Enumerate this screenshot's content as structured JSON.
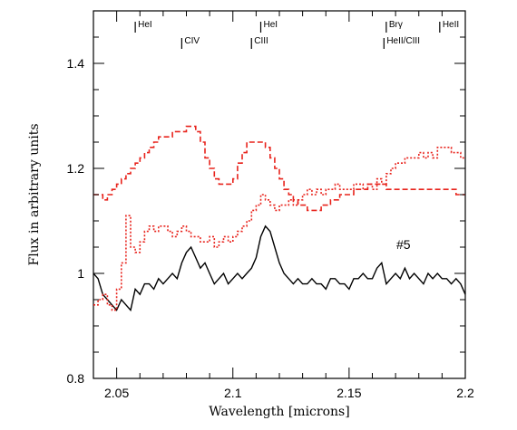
{
  "chart_data": {
    "type": "line",
    "xlabel": "Wavelength [microns]",
    "ylabel": "Flux in arbitrary units",
    "xlim": [
      2.04,
      2.2
    ],
    "ylim": [
      0.8,
      1.5
    ],
    "x_ticks": [
      2.05,
      2.1,
      2.15,
      2.2
    ],
    "x_tick_labels": [
      "2.05",
      "2.1",
      "2.15",
      "2.2"
    ],
    "y_ticks": [
      0.8,
      1.0,
      1.2,
      1.4
    ],
    "y_tick_labels": [
      "0.8",
      "1",
      "1.2",
      "1.4"
    ],
    "grid": false,
    "annotation": "#5",
    "line_markers": [
      {
        "label": "HeI",
        "x": 2.058,
        "tier": "upper"
      },
      {
        "label": "CIV",
        "x": 2.078,
        "tier": "lower"
      },
      {
        "label": "HeI",
        "x": 2.112,
        "tier": "upper"
      },
      {
        "label": "CIII",
        "x": 2.108,
        "tier": "lower"
      },
      {
        "label": "Brγ",
        "x": 2.166,
        "tier": "upper"
      },
      {
        "label": "HeII/CIII",
        "x": 2.165,
        "tier": "lower"
      },
      {
        "label": "HeII",
        "x": 2.189,
        "tier": "upper"
      }
    ],
    "series": [
      {
        "color": "#000000",
        "style": "solid",
        "step": false,
        "x": [
          2.04,
          2.042,
          2.044,
          2.046,
          2.048,
          2.05,
          2.052,
          2.054,
          2.056,
          2.058,
          2.06,
          2.062,
          2.064,
          2.066,
          2.068,
          2.07,
          2.072,
          2.074,
          2.076,
          2.078,
          2.08,
          2.082,
          2.084,
          2.086,
          2.088,
          2.09,
          2.092,
          2.094,
          2.096,
          2.098,
          2.1,
          2.102,
          2.104,
          2.106,
          2.108,
          2.11,
          2.112,
          2.114,
          2.116,
          2.118,
          2.12,
          2.122,
          2.124,
          2.126,
          2.128,
          2.13,
          2.132,
          2.134,
          2.136,
          2.138,
          2.14,
          2.142,
          2.144,
          2.146,
          2.148,
          2.15,
          2.152,
          2.154,
          2.156,
          2.158,
          2.16,
          2.162,
          2.164,
          2.166,
          2.168,
          2.17,
          2.172,
          2.174,
          2.176,
          2.178,
          2.18,
          2.182,
          2.184,
          2.186,
          2.188,
          2.19,
          2.192,
          2.194,
          2.196,
          2.198,
          2.2
        ],
        "y": [
          1.0,
          0.99,
          0.96,
          0.95,
          0.94,
          0.93,
          0.95,
          0.94,
          0.93,
          0.97,
          0.96,
          0.98,
          0.98,
          0.97,
          0.99,
          0.98,
          0.99,
          1.0,
          0.99,
          1.02,
          1.04,
          1.05,
          1.03,
          1.01,
          1.02,
          1.0,
          0.98,
          0.99,
          1.0,
          0.98,
          0.99,
          1.0,
          0.99,
          1.0,
          1.01,
          1.03,
          1.07,
          1.09,
          1.08,
          1.05,
          1.02,
          1.0,
          0.99,
          0.98,
          0.99,
          0.98,
          0.98,
          0.99,
          0.98,
          0.98,
          0.97,
          0.99,
          0.99,
          0.98,
          0.98,
          0.97,
          0.99,
          0.99,
          1.0,
          0.99,
          0.99,
          1.01,
          1.02,
          0.98,
          0.99,
          1.0,
          0.99,
          1.01,
          0.99,
          1.0,
          0.99,
          0.98,
          1.0,
          0.99,
          1.0,
          0.99,
          0.99,
          0.98,
          0.99,
          0.98,
          0.96
        ]
      },
      {
        "color": "#e8231c",
        "style": "dotted",
        "step": true,
        "x": [
          2.04,
          2.042,
          2.044,
          2.046,
          2.048,
          2.05,
          2.052,
          2.054,
          2.056,
          2.058,
          2.06,
          2.062,
          2.064,
          2.066,
          2.068,
          2.07,
          2.072,
          2.074,
          2.076,
          2.078,
          2.08,
          2.082,
          2.084,
          2.086,
          2.088,
          2.09,
          2.092,
          2.094,
          2.096,
          2.098,
          2.1,
          2.102,
          2.104,
          2.106,
          2.108,
          2.11,
          2.112,
          2.114,
          2.116,
          2.118,
          2.12,
          2.122,
          2.124,
          2.126,
          2.128,
          2.13,
          2.132,
          2.134,
          2.136,
          2.138,
          2.14,
          2.142,
          2.144,
          2.146,
          2.148,
          2.15,
          2.152,
          2.154,
          2.156,
          2.158,
          2.16,
          2.162,
          2.164,
          2.166,
          2.168,
          2.17,
          2.172,
          2.174,
          2.176,
          2.178,
          2.18,
          2.182,
          2.184,
          2.186,
          2.188,
          2.19,
          2.192,
          2.194,
          2.196,
          2.198,
          2.2
        ],
        "y": [
          0.94,
          0.95,
          0.96,
          0.94,
          0.93,
          0.97,
          1.02,
          1.11,
          1.05,
          1.04,
          1.06,
          1.08,
          1.09,
          1.08,
          1.09,
          1.09,
          1.08,
          1.07,
          1.08,
          1.09,
          1.08,
          1.07,
          1.07,
          1.06,
          1.06,
          1.07,
          1.05,
          1.06,
          1.07,
          1.06,
          1.07,
          1.08,
          1.09,
          1.1,
          1.12,
          1.13,
          1.15,
          1.14,
          1.13,
          1.12,
          1.13,
          1.13,
          1.14,
          1.13,
          1.14,
          1.15,
          1.16,
          1.15,
          1.16,
          1.15,
          1.16,
          1.16,
          1.17,
          1.16,
          1.16,
          1.16,
          1.17,
          1.17,
          1.16,
          1.17,
          1.16,
          1.18,
          1.17,
          1.19,
          1.2,
          1.21,
          1.21,
          1.22,
          1.22,
          1.22,
          1.23,
          1.22,
          1.23,
          1.22,
          1.24,
          1.24,
          1.24,
          1.23,
          1.23,
          1.22,
          1.22
        ]
      },
      {
        "color": "#e8231c",
        "style": "dashed",
        "step": true,
        "x": [
          2.04,
          2.042,
          2.044,
          2.046,
          2.048,
          2.05,
          2.052,
          2.054,
          2.056,
          2.058,
          2.06,
          2.062,
          2.064,
          2.066,
          2.068,
          2.07,
          2.072,
          2.074,
          2.076,
          2.078,
          2.08,
          2.082,
          2.084,
          2.086,
          2.088,
          2.09,
          2.092,
          2.094,
          2.096,
          2.098,
          2.1,
          2.102,
          2.104,
          2.106,
          2.108,
          2.11,
          2.112,
          2.114,
          2.116,
          2.118,
          2.12,
          2.122,
          2.124,
          2.126,
          2.128,
          2.13,
          2.132,
          2.134,
          2.136,
          2.138,
          2.14,
          2.142,
          2.144,
          2.146,
          2.148,
          2.15,
          2.152,
          2.154,
          2.156,
          2.158,
          2.16,
          2.162,
          2.164,
          2.166,
          2.168,
          2.17,
          2.172,
          2.174,
          2.176,
          2.178,
          2.18,
          2.182,
          2.184,
          2.186,
          2.188,
          2.19,
          2.192,
          2.194,
          2.196,
          2.198,
          2.2
        ],
        "y": [
          1.15,
          1.15,
          1.14,
          1.15,
          1.16,
          1.17,
          1.18,
          1.19,
          1.2,
          1.21,
          1.22,
          1.23,
          1.24,
          1.25,
          1.26,
          1.26,
          1.26,
          1.27,
          1.27,
          1.27,
          1.28,
          1.28,
          1.27,
          1.25,
          1.22,
          1.2,
          1.18,
          1.17,
          1.17,
          1.17,
          1.18,
          1.21,
          1.23,
          1.25,
          1.25,
          1.25,
          1.25,
          1.24,
          1.22,
          1.2,
          1.18,
          1.16,
          1.15,
          1.14,
          1.13,
          1.13,
          1.12,
          1.12,
          1.12,
          1.13,
          1.13,
          1.14,
          1.14,
          1.15,
          1.15,
          1.15,
          1.16,
          1.16,
          1.16,
          1.17,
          1.17,
          1.17,
          1.17,
          1.16,
          1.16,
          1.16,
          1.16,
          1.16,
          1.16,
          1.16,
          1.16,
          1.16,
          1.16,
          1.16,
          1.16,
          1.16,
          1.16,
          1.16,
          1.15,
          1.15,
          1.15
        ]
      }
    ]
  }
}
